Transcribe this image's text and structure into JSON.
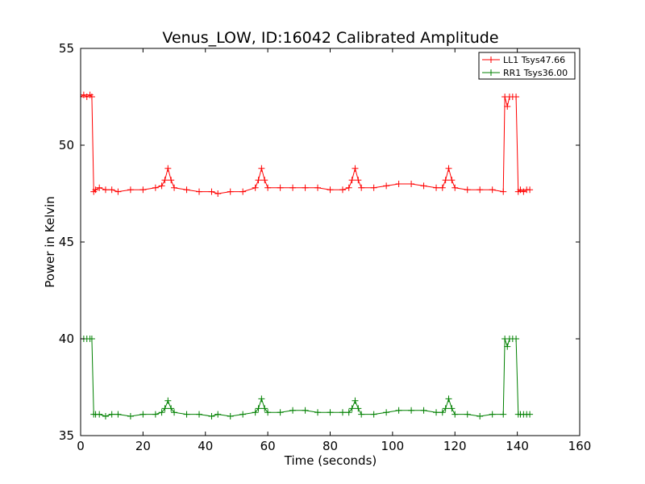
{
  "chart_data": {
    "type": "line",
    "title": "Venus_LOW, ID:16042 Calibrated Amplitude",
    "xlabel": "Time (seconds)",
    "ylabel": "Power in Kelvin",
    "xlim": [
      0,
      160
    ],
    "ylim": [
      35,
      55
    ],
    "xticks": [
      0,
      20,
      40,
      60,
      80,
      100,
      120,
      140,
      160
    ],
    "yticks": [
      35,
      40,
      45,
      50,
      55
    ],
    "grid": false,
    "legend_position": "top-right",
    "markers": "plus",
    "series": [
      {
        "name": "LL1 Tsys47.66",
        "color": "#ff0000",
        "x": [
          0,
          1,
          2,
          3,
          3.6,
          4.2,
          4.8,
          6,
          8,
          10,
          12,
          16,
          20,
          24,
          26,
          27,
          28,
          29,
          30,
          34,
          38,
          42,
          44,
          48,
          52,
          56,
          57,
          58,
          59,
          60,
          64,
          68,
          72,
          76,
          80,
          84,
          86,
          87,
          88,
          89,
          90,
          94,
          98,
          102,
          106,
          110,
          114,
          116,
          117,
          118,
          119,
          120,
          124,
          128,
          132,
          135.5,
          136,
          136.8,
          137.5,
          138.5,
          139.6,
          140.3,
          141,
          142,
          143,
          144
        ],
        "y": [
          52.5,
          52.6,
          52.5,
          52.6,
          52.5,
          47.6,
          47.7,
          47.8,
          47.7,
          47.7,
          47.6,
          47.7,
          47.7,
          47.8,
          47.9,
          48.2,
          48.8,
          48.2,
          47.8,
          47.7,
          47.6,
          47.6,
          47.5,
          47.6,
          47.6,
          47.8,
          48.2,
          48.8,
          48.2,
          47.8,
          47.8,
          47.8,
          47.8,
          47.8,
          47.7,
          47.7,
          47.8,
          48.2,
          48.8,
          48.2,
          47.8,
          47.8,
          47.9,
          48.0,
          48.0,
          47.9,
          47.8,
          47.8,
          48.2,
          48.8,
          48.2,
          47.8,
          47.7,
          47.7,
          47.7,
          47.6,
          52.5,
          52.0,
          52.5,
          52.5,
          52.5,
          47.6,
          47.7,
          47.6,
          47.7,
          47.7
        ]
      },
      {
        "name": "RR1 Tsys36.00",
        "color": "#008000",
        "x": [
          0,
          1,
          2,
          3,
          3.6,
          4.2,
          4.8,
          6,
          8,
          10,
          12,
          16,
          20,
          24,
          26,
          27,
          28,
          29,
          30,
          34,
          38,
          42,
          44,
          48,
          52,
          56,
          57,
          58,
          59,
          60,
          64,
          68,
          72,
          76,
          80,
          84,
          86,
          87,
          88,
          89,
          90,
          94,
          98,
          102,
          106,
          110,
          114,
          116,
          117,
          118,
          119,
          120,
          124,
          128,
          132,
          135.5,
          136,
          136.8,
          137.5,
          138.5,
          139.6,
          140.3,
          141,
          142,
          143,
          144
        ],
        "y": [
          40.0,
          40.0,
          40.0,
          40.0,
          40.0,
          36.1,
          36.1,
          36.1,
          36.0,
          36.1,
          36.1,
          36.0,
          36.1,
          36.1,
          36.2,
          36.4,
          36.8,
          36.4,
          36.2,
          36.1,
          36.1,
          36.0,
          36.1,
          36.0,
          36.1,
          36.2,
          36.4,
          36.9,
          36.4,
          36.2,
          36.2,
          36.3,
          36.3,
          36.2,
          36.2,
          36.2,
          36.2,
          36.4,
          36.8,
          36.4,
          36.1,
          36.1,
          36.2,
          36.3,
          36.3,
          36.3,
          36.2,
          36.2,
          36.4,
          36.9,
          36.4,
          36.1,
          36.1,
          36.0,
          36.1,
          36.1,
          40.0,
          39.6,
          40.0,
          40.0,
          40.0,
          36.1,
          36.1,
          36.1,
          36.1,
          36.1
        ]
      }
    ]
  }
}
